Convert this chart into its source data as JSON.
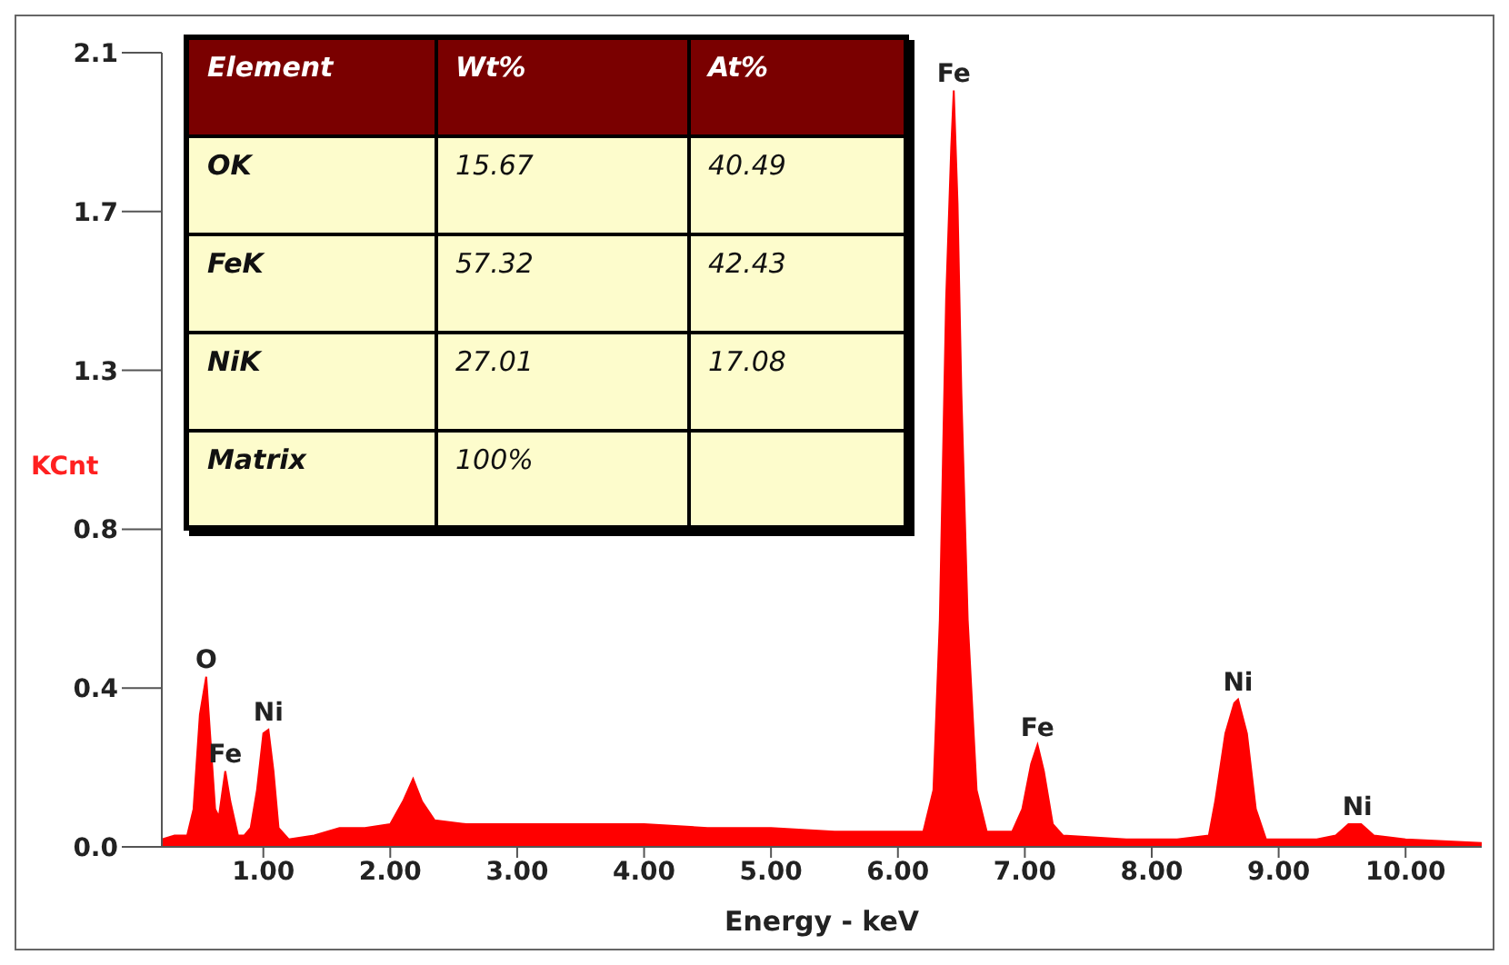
{
  "chart_data": {
    "type": "area",
    "xlabel": "Energy - keV",
    "ylabel": "KCnt",
    "color": "#ff0000",
    "x": [
      0.2,
      0.3,
      0.4,
      0.45,
      0.5,
      0.55,
      0.58,
      0.62,
      0.65,
      0.7,
      0.74,
      0.8,
      0.85,
      0.9,
      0.95,
      1.0,
      1.04,
      1.08,
      1.12,
      1.2,
      1.4,
      1.6,
      1.8,
      2.0,
      2.1,
      2.18,
      2.25,
      2.35,
      2.6,
      3.0,
      3.5,
      4.0,
      4.5,
      5.0,
      5.5,
      6.0,
      6.2,
      6.28,
      6.33,
      6.38,
      6.42,
      6.44,
      6.47,
      6.5,
      6.55,
      6.62,
      6.7,
      6.9,
      6.98,
      7.05,
      7.1,
      7.15,
      7.22,
      7.3,
      7.8,
      8.2,
      8.45,
      8.5,
      8.58,
      8.65,
      8.68,
      8.75,
      8.82,
      8.9,
      9.3,
      9.45,
      9.55,
      9.65,
      9.75,
      10.0,
      10.6
    ],
    "values": [
      0.02,
      0.03,
      0.03,
      0.1,
      0.35,
      0.45,
      0.3,
      0.1,
      0.08,
      0.2,
      0.12,
      0.03,
      0.03,
      0.05,
      0.15,
      0.3,
      0.31,
      0.2,
      0.05,
      0.02,
      0.03,
      0.05,
      0.05,
      0.06,
      0.12,
      0.18,
      0.12,
      0.07,
      0.06,
      0.06,
      0.06,
      0.06,
      0.05,
      0.05,
      0.04,
      0.04,
      0.04,
      0.15,
      0.6,
      1.45,
      1.85,
      2.0,
      1.7,
      1.2,
      0.6,
      0.15,
      0.04,
      0.04,
      0.1,
      0.22,
      0.27,
      0.2,
      0.06,
      0.03,
      0.02,
      0.02,
      0.03,
      0.12,
      0.3,
      0.38,
      0.39,
      0.3,
      0.1,
      0.02,
      0.02,
      0.03,
      0.06,
      0.06,
      0.03,
      0.02,
      0.01
    ],
    "xlim": [
      0.2,
      10.6
    ],
    "xticks": [
      {
        "value": 1,
        "label": "1.00"
      },
      {
        "value": 2,
        "label": "2.00"
      },
      {
        "value": 3,
        "label": "3.00"
      },
      {
        "value": 4,
        "label": "4.00"
      },
      {
        "value": 5,
        "label": "5.00"
      },
      {
        "value": 6,
        "label": "6.00"
      },
      {
        "value": 7,
        "label": "7.00"
      },
      {
        "value": 8,
        "label": "8.00"
      },
      {
        "value": 9,
        "label": "9.00"
      },
      {
        "value": 10,
        "label": "10.00"
      }
    ],
    "ylim": [
      0,
      2.1
    ],
    "yticks": [
      {
        "value": 0,
        "label": "0.0"
      },
      {
        "value": 0.42,
        "label": "0.4"
      },
      {
        "value": 0.84,
        "label": "0.8"
      },
      {
        "value": 1.26,
        "label": "1.3"
      },
      {
        "value": 1.68,
        "label": "1.7"
      },
      {
        "value": 2.1,
        "label": "2.1"
      }
    ],
    "annotations": [
      "Element",
      "Wt%",
      "At%",
      "OK",
      "15.67",
      "40.49",
      "FeK",
      "57.32",
      "42.43",
      "NiK",
      "27.01",
      "17.08",
      "Matrix",
      "100%",
      {
        "text": "O",
        "x": 0.55,
        "y": 0.45
      },
      {
        "text": "Fe",
        "x": 0.7,
        "y": 0.2
      },
      {
        "text": "Ni",
        "x": 1.04,
        "y": 0.31
      },
      {
        "text": "Fe",
        "x": 6.44,
        "y": 2.0
      },
      {
        "text": "Fe",
        "x": 7.1,
        "y": 0.27
      },
      {
        "text": "Ni",
        "x": 8.68,
        "y": 0.39
      },
      {
        "text": "Ni",
        "x": 9.62,
        "y": 0.06
      }
    ]
  }
}
